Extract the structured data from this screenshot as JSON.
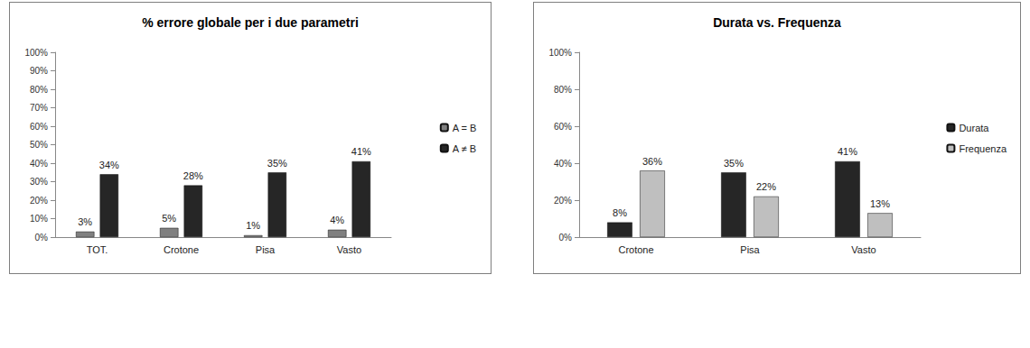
{
  "chart_data": [
    {
      "type": "bar",
      "title": "% errore globale per i due parametri",
      "categories": [
        "TOT.",
        "Crotone",
        "Pisa",
        "Vasto"
      ],
      "series": [
        {
          "name": "A = B",
          "color": "#808080",
          "values": [
            3,
            5,
            1,
            4
          ],
          "value_labels": [
            "3%",
            "5%",
            "1%",
            "4%"
          ]
        },
        {
          "name": "A ≠ B",
          "color": "#262626",
          "values": [
            34,
            28,
            35,
            41
          ],
          "value_labels": [
            "34%",
            "28%",
            "35%",
            "41%"
          ]
        }
      ],
      "ylim": [
        0,
        100
      ],
      "yticks": [
        {
          "value": 0,
          "label": "0%"
        },
        {
          "value": 10,
          "label": "10%"
        },
        {
          "value": 20,
          "label": "20%"
        },
        {
          "value": 30,
          "label": "30%"
        },
        {
          "value": 40,
          "label": "40%"
        },
        {
          "value": 50,
          "label": "50%"
        },
        {
          "value": 60,
          "label": "60%"
        },
        {
          "value": 70,
          "label": "70%"
        },
        {
          "value": 80,
          "label": "80%"
        },
        {
          "value": 90,
          "label": "90%"
        },
        {
          "value": 100,
          "label": "100%"
        }
      ],
      "grid": false,
      "legend": "right",
      "data_labels": true
    },
    {
      "type": "bar",
      "title": "Durata vs. Frequenza",
      "categories": [
        "Crotone",
        "Pisa",
        "Vasto"
      ],
      "series": [
        {
          "name": "Durata",
          "color": "#262626",
          "values": [
            8,
            35,
            41
          ],
          "value_labels": [
            "8%",
            "35%",
            "41%"
          ]
        },
        {
          "name": "Frequenza",
          "color": "#bfbfbf",
          "values": [
            36,
            22,
            13
          ],
          "value_labels": [
            "36%",
            "22%",
            "13%"
          ]
        }
      ],
      "ylim": [
        0,
        100
      ],
      "yticks": [
        {
          "value": 0,
          "label": "0%"
        },
        {
          "value": 20,
          "label": "20%"
        },
        {
          "value": 40,
          "label": "40%"
        },
        {
          "value": 60,
          "label": "60%"
        },
        {
          "value": 80,
          "label": "80%"
        },
        {
          "value": 100,
          "label": "100%"
        }
      ],
      "grid": false,
      "legend": "right",
      "data_labels": true
    }
  ]
}
